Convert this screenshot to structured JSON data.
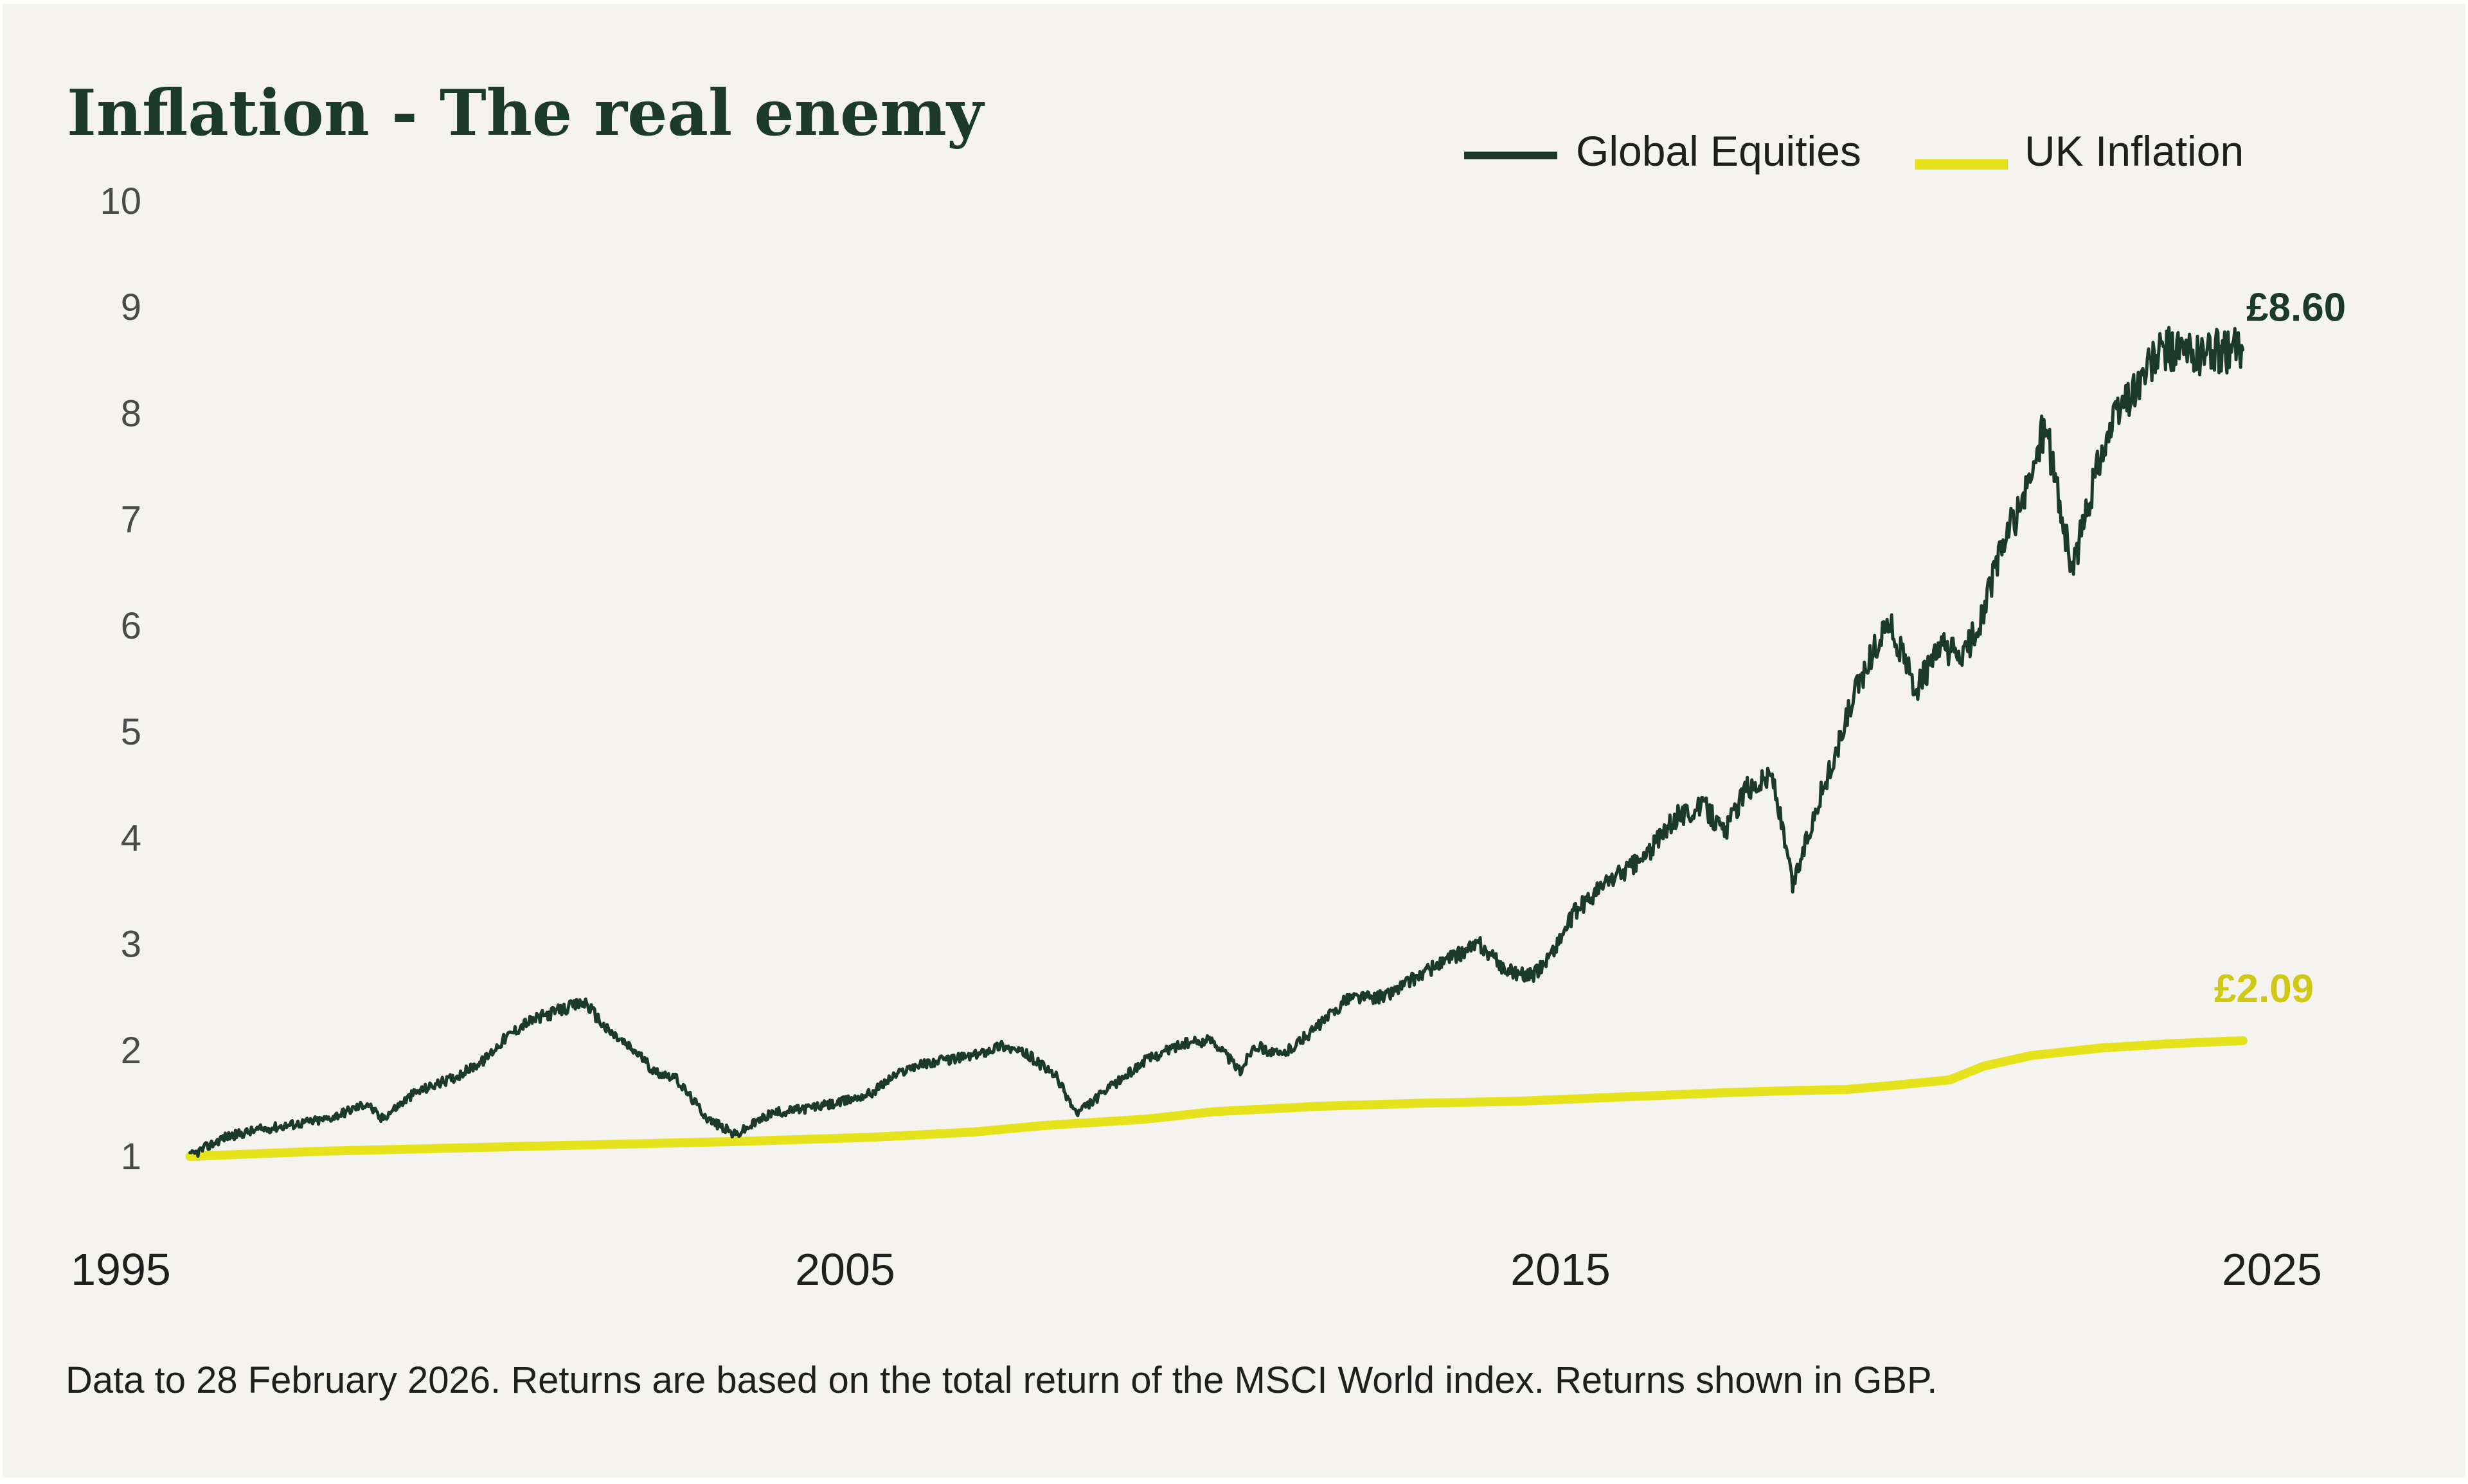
{
  "chart_data": {
    "type": "line",
    "title": "Inflation - The real enemy",
    "xlabel": "",
    "ylabel": "",
    "xlim": [
      1995.9,
      2026.15
    ],
    "ylim": [
      1,
      10
    ],
    "x_ticks": [
      {
        "value": 1995,
        "label": "1995"
      },
      {
        "value": 2005,
        "label": "2005"
      },
      {
        "value": 2015,
        "label": "2015"
      },
      {
        "value": 2025,
        "label": "2025"
      }
    ],
    "y_ticks": [
      {
        "value": 1,
        "label": "1"
      },
      {
        "value": 2,
        "label": "2"
      },
      {
        "value": 3,
        "label": "3"
      },
      {
        "value": 4,
        "label": "4"
      },
      {
        "value": 5,
        "label": "5"
      },
      {
        "value": 6,
        "label": "6"
      },
      {
        "value": 7,
        "label": "7"
      },
      {
        "value": 8,
        "label": "8"
      },
      {
        "value": 9,
        "label": "9"
      },
      {
        "value": 10,
        "label": "10"
      }
    ],
    "grid": false,
    "legend_position": "top-right",
    "series": [
      {
        "name": "Global Equities",
        "color": "#1b3a2b",
        "end_label": "£8.60",
        "x": [
          1996.0,
          1996.5,
          1997.0,
          1997.5,
          1998.0,
          1998.6,
          1998.8,
          1999.3,
          1999.9,
          2000.3,
          2000.6,
          2000.9,
          2001.3,
          2001.8,
          2002.1,
          2002.6,
          2002.8,
          2003.1,
          2003.6,
          2004.0,
          2004.5,
          2005.0,
          2005.5,
          2006.0,
          2006.3,
          2006.6,
          2007.0,
          2007.5,
          2007.9,
          2008.3,
          2008.7,
          2009.0,
          2009.2,
          2009.6,
          2010.0,
          2010.5,
          2011.0,
          2011.4,
          2011.6,
          2012.0,
          2012.5,
          2013.0,
          2013.5,
          2014.0,
          2014.6,
          2014.9,
          2015.3,
          2015.7,
          2016.0,
          2016.3,
          2016.8,
          2017.3,
          2017.8,
          2018.2,
          2018.5,
          2018.8,
          2019.2,
          2019.5,
          2019.9,
          2020.15,
          2020.25,
          2020.5,
          2020.9,
          2021.3,
          2021.7,
          2022.0,
          2022.25,
          2022.6,
          2022.9,
          2023.2,
          2023.6,
          2024.0,
          2024.3,
          2024.6,
          2024.8,
          2025.0,
          2025.3,
          2025.7,
          2026.1
        ],
        "y": [
          1.0,
          1.18,
          1.25,
          1.3,
          1.35,
          1.5,
          1.35,
          1.6,
          1.75,
          1.9,
          2.1,
          2.25,
          2.35,
          2.45,
          2.2,
          1.95,
          1.8,
          1.75,
          1.35,
          1.2,
          1.4,
          1.45,
          1.5,
          1.6,
          1.75,
          1.85,
          1.9,
          1.95,
          2.05,
          1.95,
          1.75,
          1.4,
          1.5,
          1.7,
          1.9,
          2.05,
          2.1,
          1.8,
          2.05,
          1.95,
          2.2,
          2.5,
          2.5,
          2.7,
          2.9,
          3.0,
          2.75,
          2.7,
          2.95,
          3.3,
          3.6,
          3.8,
          4.2,
          4.3,
          4.05,
          4.45,
          4.6,
          3.55,
          4.4,
          4.8,
          5.05,
          5.5,
          6.05,
          5.4,
          5.8,
          5.7,
          6.05,
          6.8,
          7.2,
          7.9,
          6.5,
          7.6,
          8.05,
          8.3,
          8.5,
          8.6,
          8.55,
          8.58,
          8.6
        ]
      },
      {
        "name": "UK Inflation",
        "color": "#e6e21c",
        "end_label": "£2.09",
        "x": [
          1996.0,
          1998.0,
          2000.0,
          2002.0,
          2004.0,
          2006.0,
          2007.5,
          2008.5,
          2010.0,
          2011.0,
          2012.5,
          2014.0,
          2015.5,
          2017.0,
          2018.5,
          2019.5,
          2020.3,
          2021.0,
          2021.8,
          2022.3,
          2023.0,
          2024.0,
          2025.0,
          2025.7,
          2026.1
        ],
        "y": [
          1.0,
          1.05,
          1.08,
          1.11,
          1.14,
          1.18,
          1.23,
          1.29,
          1.35,
          1.42,
          1.47,
          1.5,
          1.52,
          1.56,
          1.6,
          1.62,
          1.63,
          1.67,
          1.72,
          1.85,
          1.95,
          2.02,
          2.06,
          2.08,
          2.09
        ]
      }
    ],
    "footnote": "Data to 28 February 2026.  Returns are based on the total return of the MSCI World index. Returns shown in GBP."
  }
}
